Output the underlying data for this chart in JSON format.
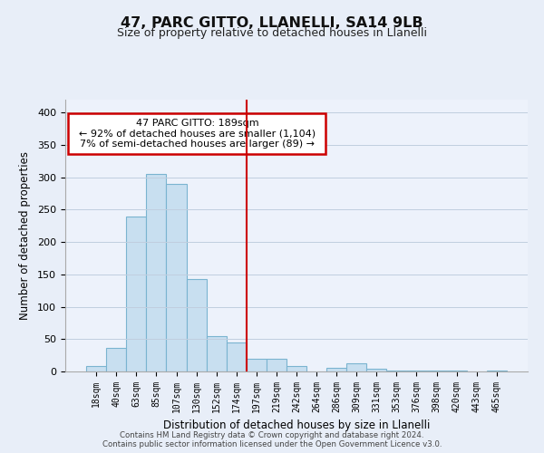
{
  "title": "47, PARC GITTO, LLANELLI, SA14 9LB",
  "subtitle": "Size of property relative to detached houses in Llanelli",
  "xlabel": "Distribution of detached houses by size in Llanelli",
  "ylabel": "Number of detached properties",
  "bar_labels": [
    "18sqm",
    "40sqm",
    "63sqm",
    "85sqm",
    "107sqm",
    "130sqm",
    "152sqm",
    "174sqm",
    "197sqm",
    "219sqm",
    "242sqm",
    "264sqm",
    "286sqm",
    "309sqm",
    "331sqm",
    "353sqm",
    "376sqm",
    "398sqm",
    "420sqm",
    "443sqm",
    "465sqm"
  ],
  "bar_values": [
    8,
    37,
    240,
    305,
    290,
    143,
    55,
    45,
    20,
    20,
    9,
    0,
    5,
    13,
    4,
    2,
    1,
    1,
    1,
    0,
    1
  ],
  "bar_color": "#c8dff0",
  "bar_edge_color": "#7ab4d0",
  "vline_x": 8,
  "vline_color": "#cc0000",
  "annotation_title": "47 PARC GITTO: 189sqm",
  "annotation_line1": "← 92% of detached houses are smaller (1,104)",
  "annotation_line2": "7% of semi-detached houses are larger (89) →",
  "annotation_box_color": "#ffffff",
  "annotation_box_edge": "#cc0000",
  "ylim": [
    0,
    420
  ],
  "yticks": [
    0,
    50,
    100,
    150,
    200,
    250,
    300,
    350,
    400
  ],
  "footer1": "Contains HM Land Registry data © Crown copyright and database right 2024.",
  "footer2": "Contains public sector information licensed under the Open Government Licence v3.0.",
  "bg_color": "#e8eef8",
  "plot_bg_color": "#edf2fb"
}
